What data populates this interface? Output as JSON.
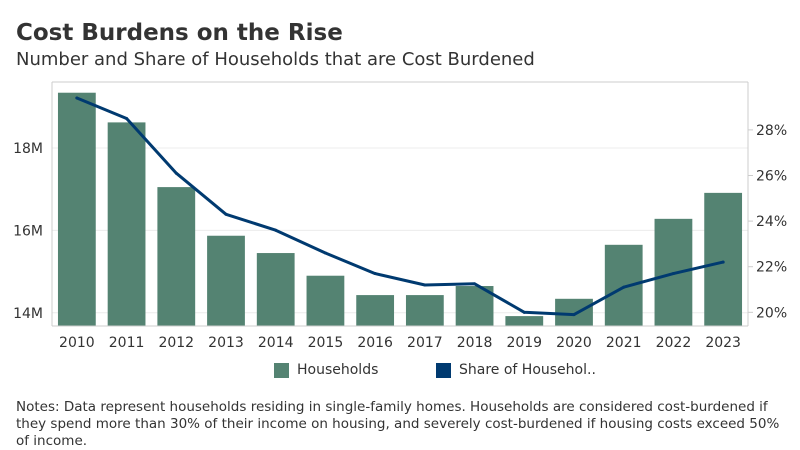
{
  "header": {
    "title": "Cost Burdens on the Rise",
    "subtitle": "Number and Share of Households that are Cost Burdened"
  },
  "colors": {
    "bar": "#548372",
    "line": "#003a70",
    "grid": "#ececec",
    "axis": "#cccccc",
    "text": "#333333"
  },
  "legend": {
    "position": "bottom",
    "items": [
      {
        "label": "Households",
        "color": "#548372"
      },
      {
        "label": "Share of Househol..",
        "color": "#003a70"
      }
    ]
  },
  "chart_data": {
    "type": "bar",
    "categories": [
      "2010",
      "2011",
      "2012",
      "2013",
      "2014",
      "2015",
      "2016",
      "2017",
      "2018",
      "2019",
      "2020",
      "2021",
      "2022",
      "2023"
    ],
    "series": [
      {
        "name": "Households",
        "type": "bar",
        "axis": "left",
        "values": [
          19.34,
          18.62,
          17.05,
          15.87,
          15.45,
          14.9,
          14.43,
          14.43,
          14.65,
          13.92,
          14.34,
          15.65,
          16.28,
          16.91
        ]
      },
      {
        "name": "Share of Househol..",
        "type": "line",
        "axis": "right",
        "values": [
          29.4,
          28.5,
          26.1,
          24.3,
          23.6,
          22.6,
          21.7,
          21.2,
          21.25,
          20.0,
          19.9,
          21.1,
          21.7,
          22.2
        ]
      }
    ],
    "yleft": {
      "ticks": [
        "14M",
        "16M",
        "18M"
      ],
      "tick_values": [
        14,
        16,
        18
      ],
      "lim": [
        13.68,
        19.6
      ]
    },
    "yright": {
      "ticks": [
        "20%",
        "22%",
        "24%",
        "26%",
        "28%"
      ],
      "tick_values": [
        20,
        22,
        24,
        26,
        28
      ],
      "lim": [
        19.4,
        30.1
      ]
    },
    "grid": true
  },
  "notes": "Notes: Data represent households residing in single-family homes. Households are considered cost-burdened if they spend more than 30% of their income on housing, and severely cost-burdened if housing costs exceed 50% of income."
}
